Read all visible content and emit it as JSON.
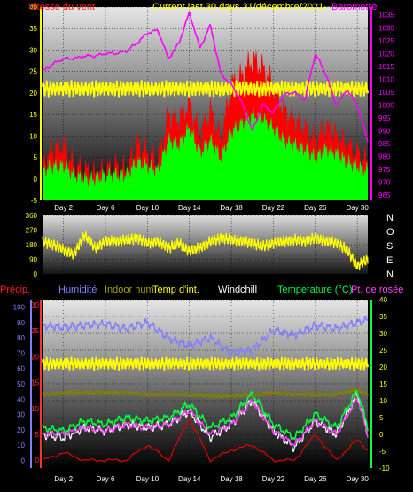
{
  "header": {
    "title_left": "Vitesse du vent",
    "title_center": "Current last 30 days 31/décembre/2021---",
    "title_right": "Barometre",
    "compass_letters": [
      "N",
      "O",
      "S",
      "E",
      "N"
    ]
  },
  "legend": {
    "precip": "Précip.",
    "humidity": "Humidité",
    "indoor_hum": "Indoor hum",
    "temp_int": "Temp d'int.",
    "windchill": "Windchill",
    "temperature": "Temperature (°C)",
    "dew": "Pt. de rosée"
  },
  "colors": {
    "wind_gust": "#ff0000",
    "wind_avg": "#00ff00",
    "barometer": "#ff00ff",
    "indoor": "#ffff00",
    "direction": "#ffff00",
    "humidity": "#8080ff",
    "indoor_hum": "#808000",
    "precip": "#d00000",
    "temperature": "#00ff40",
    "dew": "#ff40ff",
    "windchill": "#ffffff",
    "axis_left_top": "#ffff00",
    "axis_precip": "#ff3030",
    "axis_hum": "#8080ff",
    "axis_temp": "#ffff00"
  },
  "chart_data": [
    {
      "type": "line",
      "title": "Current last 30 days 31/décembre/2021---",
      "x_tick_labels": [
        "Day 2",
        "Day 6",
        "Day 10",
        "Day 14",
        "Day 18",
        "Day 22",
        "Day 26",
        "Day 30"
      ],
      "x_tick_days": [
        2,
        6,
        10,
        14,
        18,
        22,
        26,
        30
      ],
      "xlim": [
        0,
        31
      ],
      "y_left_label": "Vitesse du vent",
      "y_left_ticks": [
        -5,
        0,
        5,
        10,
        15,
        20,
        25,
        30,
        35,
        40
      ],
      "ylim_left": [
        -5,
        40
      ],
      "y_right_label": "Barometre",
      "y_right_ticks": [
        965,
        970,
        975,
        980,
        985,
        990,
        995,
        1000,
        1005,
        1010,
        1015,
        1020,
        1025,
        1030,
        1035
      ],
      "ylim_right": [
        963,
        1038
      ],
      "series": [
        {
          "name": "Barometre",
          "axis": "right",
          "x": [
            0,
            1,
            2,
            3,
            4,
            5,
            6,
            7,
            8,
            9,
            10,
            11,
            12,
            13,
            14,
            15,
            16,
            17,
            18,
            19,
            20,
            21,
            22,
            23,
            24,
            25,
            26,
            27,
            28,
            29,
            30,
            31
          ],
          "values": [
            1013,
            1016,
            1018,
            1018,
            1019,
            1019,
            1020,
            1020,
            1021,
            1024,
            1028,
            1029,
            1018,
            1024,
            1036,
            1022,
            1031,
            1012,
            1008,
            1001,
            990,
            1000,
            997,
            1004,
            1005,
            1002,
            1020,
            1012,
            1000,
            1006,
            1000,
            986
          ]
        },
        {
          "x": [
            0,
            1,
            2,
            3,
            4,
            5,
            6,
            7,
            8,
            9,
            10,
            11,
            12,
            13,
            14,
            15,
            16,
            17,
            18,
            19,
            20,
            21,
            22,
            23,
            24,
            25,
            26,
            27,
            28,
            29,
            30,
            31
          ],
          "values": [
            4,
            7,
            8,
            3,
            2,
            1,
            2,
            3,
            2,
            8,
            6,
            4,
            15,
            14,
            18,
            10,
            16,
            9,
            22,
            24,
            28,
            26,
            22,
            16,
            14,
            12,
            9,
            12,
            10,
            8,
            6,
            4
          ]
        },
        {
          "x": [
            0,
            1,
            2,
            3,
            4,
            5,
            6,
            7,
            8,
            9,
            10,
            11,
            12,
            13,
            14,
            15,
            16,
            17,
            18,
            19,
            20,
            21,
            22,
            23,
            24,
            25,
            26,
            27,
            28,
            29,
            30,
            31
          ],
          "values": [
            2,
            3,
            3,
            1,
            0,
            0,
            1,
            1,
            1,
            4,
            3,
            2,
            9,
            8,
            12,
            6,
            9,
            5,
            11,
            13,
            15,
            14,
            12,
            9,
            8,
            7,
            5,
            7,
            6,
            4,
            3,
            2
          ]
        },
        {
          "x": [
            0,
            2,
            4,
            6,
            8,
            10,
            12,
            14,
            16,
            18,
            20,
            22,
            24,
            26,
            28,
            30,
            31
          ],
          "values": [
            21,
            21,
            21,
            21,
            21,
            21,
            21,
            21,
            21,
            21,
            21,
            21,
            21,
            21,
            21,
            21,
            21
          ]
        }
      ]
    },
    {
      "type": "line",
      "xlim": [
        0,
        31
      ],
      "y_ticks": [
        0,
        90,
        180,
        270,
        360
      ],
      "ylim": [
        0,
        360
      ],
      "compass": [
        "N",
        "O",
        "S",
        "E",
        "N"
      ],
      "series": [
        {
          "x": [
            0,
            1,
            2,
            3,
            4,
            5,
            6,
            7,
            8,
            9,
            10,
            11,
            12,
            13,
            14,
            15,
            16,
            17,
            18,
            19,
            20,
            21,
            22,
            23,
            24,
            25,
            26,
            27,
            28,
            29,
            30,
            31
          ],
          "values": [
            200,
            180,
            150,
            120,
            240,
            160,
            200,
            200,
            210,
            220,
            190,
            200,
            160,
            190,
            140,
            160,
            200,
            220,
            210,
            200,
            190,
            170,
            190,
            200,
            210,
            200,
            220,
            200,
            190,
            150,
            50,
            90
          ]
        }
      ]
    },
    {
      "type": "line",
      "xlim": [
        0,
        31
      ],
      "y_precip_ticks": [
        0,
        5,
        10,
        15,
        20,
        25,
        30
      ],
      "ylim_precip": [
        -1.5,
        31
      ],
      "y_hum_ticks": [
        0,
        10,
        20,
        30,
        40,
        50,
        60,
        70,
        80,
        90,
        100
      ],
      "ylim_hum": [
        -5,
        105
      ],
      "y_temp_right_ticks": [
        -10,
        -5,
        0,
        5,
        10,
        15,
        20,
        25,
        30,
        35,
        40
      ],
      "ylim_temp": [
        -10,
        40
      ],
      "series": [
        {
          "name": "Humidité",
          "axis": "hum",
          "x": [
            0,
            2,
            4,
            6,
            8,
            10,
            12,
            14,
            16,
            18,
            20,
            22,
            24,
            26,
            28,
            30,
            31
          ],
          "values": [
            88,
            87,
            88,
            89,
            86,
            90,
            80,
            75,
            80,
            70,
            72,
            85,
            82,
            88,
            86,
            90,
            92
          ]
        },
        {
          "name": "Indoor hum",
          "axis": "hum",
          "x": [
            0,
            2,
            4,
            6,
            8,
            10,
            12,
            14,
            16,
            18,
            20,
            22,
            24,
            26,
            28,
            30,
            31
          ],
          "values": [
            43,
            44,
            44,
            44,
            44,
            43,
            43,
            43,
            42,
            42,
            43,
            44,
            43,
            43,
            43,
            46,
            43
          ]
        },
        {
          "name": "Temp d'int.",
          "axis": "temp",
          "x": [
            0,
            2,
            4,
            6,
            8,
            10,
            12,
            14,
            16,
            18,
            20,
            22,
            24,
            26,
            28,
            30,
            31
          ],
          "values": [
            21,
            21,
            21,
            21,
            21,
            21,
            21,
            21,
            21,
            21,
            21,
            21,
            21,
            21,
            21,
            21,
            21
          ]
        },
        {
          "name": "Temperature (°C)",
          "axis": "temp",
          "x": [
            0,
            2,
            4,
            6,
            8,
            10,
            12,
            14,
            16,
            18,
            20,
            22,
            24,
            26,
            28,
            30,
            31
          ],
          "values": [
            2,
            1,
            4,
            3,
            5,
            4,
            5,
            9,
            2,
            5,
            12,
            3,
            -1,
            6,
            2,
            13,
            2
          ]
        },
        {
          "name": "Pt. de rosée",
          "axis": "temp",
          "x": [
            0,
            2,
            4,
            6,
            8,
            10,
            12,
            14,
            16,
            18,
            20,
            22,
            24,
            26,
            28,
            30,
            31
          ],
          "values": [
            0,
            0,
            2,
            1,
            3,
            2,
            3,
            7,
            0,
            3,
            10,
            1,
            -3,
            4,
            0,
            11,
            0
          ]
        },
        {
          "name": "Windchill",
          "axis": "temp",
          "x": [
            0,
            2,
            4,
            6,
            8,
            10,
            12,
            14,
            16,
            18,
            20,
            22,
            24,
            26,
            28,
            30,
            31
          ],
          "values": [
            0,
            -1,
            2,
            1,
            3,
            2,
            3,
            7,
            -1,
            3,
            10,
            1,
            -4,
            4,
            0,
            12,
            0
          ]
        },
        {
          "name": "Précip.",
          "axis": "precip",
          "x": [
            0,
            2,
            4,
            6,
            8,
            10,
            12,
            14,
            16,
            18,
            20,
            22,
            24,
            26,
            28,
            30,
            31
          ],
          "values": [
            0,
            1.5,
            0,
            0,
            0,
            3,
            0,
            8,
            0,
            2,
            3,
            0,
            0,
            5,
            0,
            4,
            2
          ]
        }
      ]
    }
  ]
}
